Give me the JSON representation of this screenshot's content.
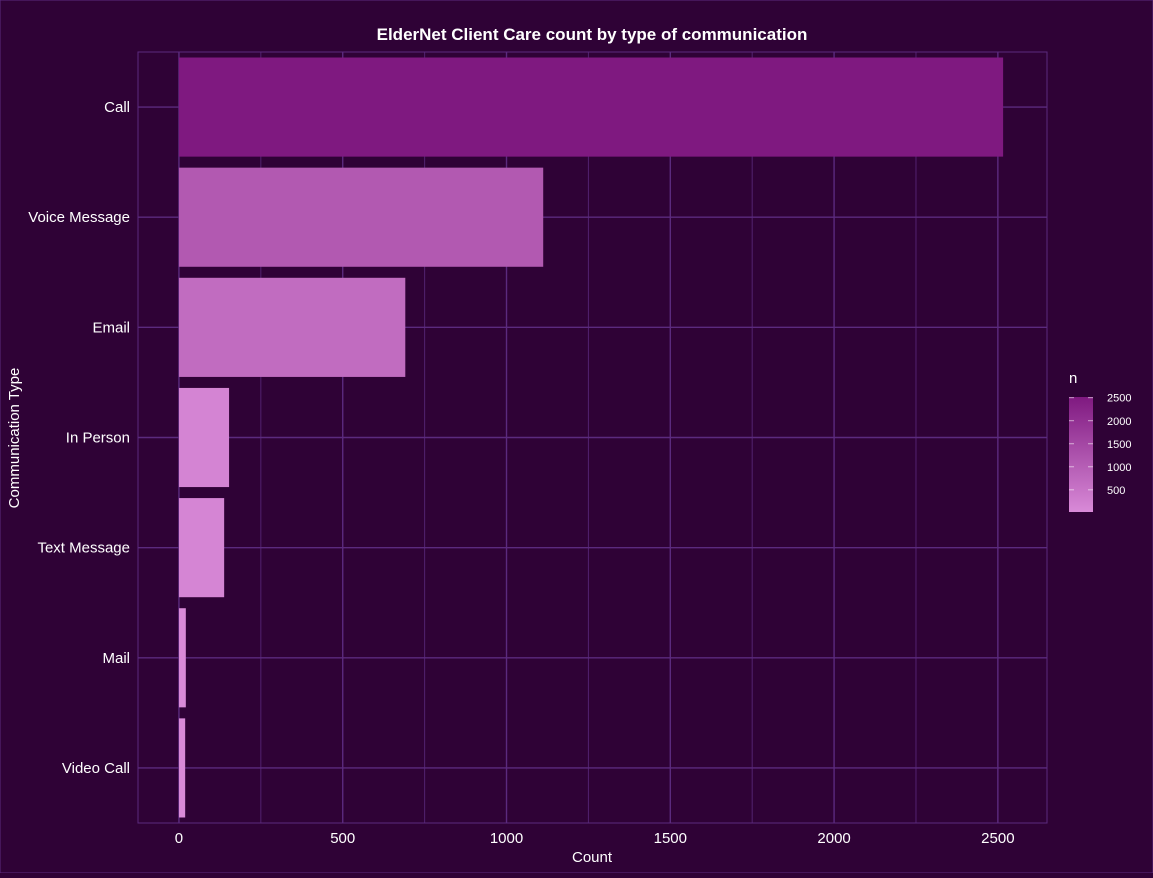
{
  "chart_data": {
    "type": "bar",
    "orientation": "horizontal",
    "title": "ElderNet Client Care count by type of communication",
    "xlabel": "Count",
    "ylabel": "Communication Type",
    "categories": [
      "Call",
      "Voice Message",
      "Email",
      "In Person",
      "Text Message",
      "Mail",
      "Video Call"
    ],
    "values": [
      2516,
      1112,
      691,
      153,
      138,
      21,
      19
    ],
    "xlim": [
      -125,
      2650
    ],
    "x_ticks": [
      0,
      500,
      1000,
      1500,
      2000,
      2500
    ],
    "grid": true,
    "legend": {
      "title": "n",
      "type": "colorbar",
      "position": "right",
      "ticks": [
        500,
        1000,
        1500,
        2000,
        2500
      ],
      "range": [
        19,
        2516
      ]
    },
    "colors": {
      "background": "#2f0236",
      "grid": "#5b2a7e",
      "text": "#ffffff",
      "low": "#d98ad8",
      "high": "#7f1980"
    }
  }
}
